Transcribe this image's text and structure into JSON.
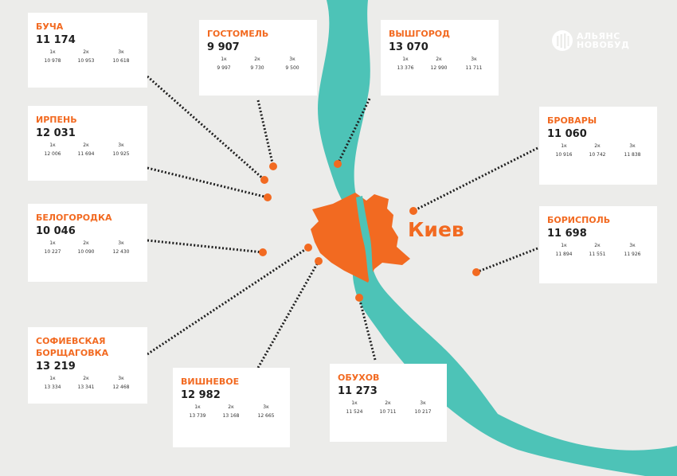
{
  "brand": {
    "line1": "АЛЬЯНС",
    "line2": "НОВОБУД"
  },
  "center_city": "Киев",
  "colors": {
    "accent": "#f26a21",
    "river": "#4dc3b7",
    "land": "#ececea",
    "card": "#ffffff"
  },
  "room_labels": [
    "1к",
    "2к",
    "3к"
  ],
  "towns": [
    {
      "id": "bucha",
      "name": "БУЧА",
      "price": "11 174",
      "rooms": [
        "10 978",
        "10 953",
        "10 618"
      ]
    },
    {
      "id": "hostomel",
      "name": "ГОСТОМЕЛЬ",
      "price": "9 907",
      "rooms": [
        "9 997",
        "9 730",
        "9 500"
      ]
    },
    {
      "id": "vyshhorod",
      "name": "ВЫШГОРОД",
      "price": "13 070",
      "rooms": [
        "13 376",
        "12 990",
        "11 711"
      ]
    },
    {
      "id": "irpen",
      "name": "ИРПЕНЬ",
      "price": "12 031",
      "rooms": [
        "12 006",
        "11 694",
        "10 925"
      ]
    },
    {
      "id": "brovary",
      "name": "БРОВАРЫ",
      "price": "11 060",
      "rooms": [
        "10 916",
        "10 742",
        "11 838"
      ]
    },
    {
      "id": "belogorodka",
      "name": "БЕЛОГОРОДКА",
      "price": "10 046",
      "rooms": [
        "10 227",
        "10 090",
        "12 430"
      ]
    },
    {
      "id": "boryspil",
      "name": "БОРИСПОЛЬ",
      "price": "11 698",
      "rooms": [
        "11 894",
        "11 551",
        "11 926"
      ]
    },
    {
      "id": "sofievskaya",
      "name": "СОФИЕВСКАЯ БОРЩАГОВКА",
      "price": "13 219",
      "rooms": [
        "13 334",
        "13 341",
        "12 468"
      ]
    },
    {
      "id": "vyshnevoe",
      "name": "ВИШНЕВОЕ",
      "price": "12 982",
      "rooms": [
        "13 739",
        "13 168",
        "12 665"
      ]
    },
    {
      "id": "obukhov",
      "name": "ОБУХОВ",
      "price": "11 273",
      "rooms": [
        "11 524",
        "10 711",
        "10 217"
      ]
    }
  ]
}
